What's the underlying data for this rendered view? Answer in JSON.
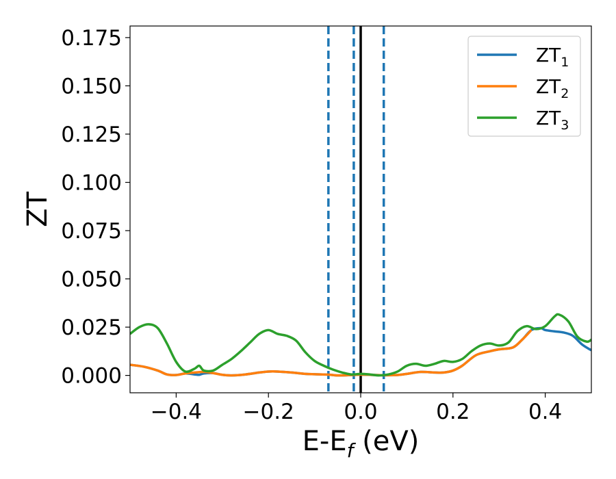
{
  "chart_data": {
    "type": "line",
    "xlabel": "E-E",
    "xlabel_sub": "f",
    "xlabel_unit": " (eV)",
    "ylabel": "ZT",
    "xlim": [
      -0.5,
      0.5
    ],
    "ylim": [
      -0.009,
      0.181
    ],
    "x_ticks": [
      -0.4,
      -0.2,
      0.0,
      0.2,
      0.4
    ],
    "x_tick_labels": [
      "−0.4",
      "−0.2",
      "0.0",
      "0.2",
      "0.4"
    ],
    "y_ticks": [
      0.0,
      0.025,
      0.05,
      0.075,
      0.1,
      0.125,
      0.15,
      0.175
    ],
    "y_tick_labels": [
      "0.000",
      "0.025",
      "0.050",
      "0.075",
      "0.100",
      "0.125",
      "0.150",
      "0.175"
    ],
    "legend_position": "top-right",
    "grid": false,
    "vlines": [
      {
        "x": -0.07,
        "style": "dashed",
        "color": "#1f77b4"
      },
      {
        "x": -0.015,
        "style": "dashed",
        "color": "#1f77b4"
      },
      {
        "x": 0.0,
        "style": "solid",
        "color": "#000000"
      },
      {
        "x": 0.05,
        "style": "dashed",
        "color": "#1f77b4"
      }
    ],
    "series": [
      {
        "name": "ZT",
        "sub": "1",
        "color": "#1f77b4",
        "x": [
          -0.5,
          -0.47,
          -0.44,
          -0.42,
          -0.4,
          -0.38,
          -0.36,
          -0.35,
          -0.34,
          -0.32,
          -0.3,
          -0.28,
          -0.25,
          -0.22,
          -0.2,
          -0.18,
          -0.15,
          -0.12,
          -0.1,
          -0.07,
          -0.05,
          -0.03,
          -0.01,
          0.0,
          0.02,
          0.05,
          0.08,
          0.1,
          0.13,
          0.16,
          0.18,
          0.2,
          0.22,
          0.25,
          0.28,
          0.3,
          0.33,
          0.35,
          0.37,
          0.39,
          0.4,
          0.42,
          0.44,
          0.46,
          0.48,
          0.5
        ],
        "y": [
          0.0055,
          0.0045,
          0.0025,
          0.0005,
          0.0002,
          0.001,
          0.0005,
          0.0003,
          0.001,
          0.0012,
          0.0003,
          0.0,
          0.0005,
          0.0015,
          0.002,
          0.002,
          0.0015,
          0.0008,
          0.0006,
          0.0004,
          0.0,
          0.0001,
          0.0003,
          0.0004,
          0.0003,
          0.0001,
          0.0002,
          0.0008,
          0.0018,
          0.0015,
          0.0015,
          0.0025,
          0.005,
          0.0105,
          0.0125,
          0.0135,
          0.0145,
          0.0185,
          0.0235,
          0.0245,
          0.0235,
          0.0228,
          0.0222,
          0.0205,
          0.016,
          0.013
        ]
      },
      {
        "name": "ZT",
        "sub": "2",
        "color": "#ff7f0e",
        "x": [
          -0.5,
          -0.47,
          -0.44,
          -0.42,
          -0.4,
          -0.38,
          -0.36,
          -0.34,
          -0.32,
          -0.3,
          -0.28,
          -0.25,
          -0.22,
          -0.2,
          -0.18,
          -0.15,
          -0.12,
          -0.1,
          -0.07,
          -0.05,
          -0.03,
          -0.01,
          0.0,
          0.02,
          0.05,
          0.08,
          0.1,
          0.13,
          0.16,
          0.18,
          0.2,
          0.22,
          0.25,
          0.28,
          0.3,
          0.33,
          0.35,
          0.37
        ],
        "y": [
          0.0055,
          0.0045,
          0.0025,
          0.0005,
          0.0002,
          0.001,
          0.0015,
          0.0018,
          0.0012,
          0.0003,
          0.0,
          0.0005,
          0.0015,
          0.002,
          0.002,
          0.0015,
          0.0008,
          0.0006,
          0.0004,
          0.0,
          0.0001,
          0.0003,
          0.0004,
          0.0003,
          0.0001,
          0.0002,
          0.0008,
          0.0018,
          0.0015,
          0.0015,
          0.0025,
          0.005,
          0.0105,
          0.0125,
          0.0135,
          0.0145,
          0.0185,
          0.0235
        ]
      },
      {
        "name": "ZT",
        "sub": "3",
        "color": "#2ca02c",
        "x": [
          -0.5,
          -0.48,
          -0.46,
          -0.44,
          -0.42,
          -0.4,
          -0.38,
          -0.36,
          -0.35,
          -0.34,
          -0.32,
          -0.3,
          -0.28,
          -0.26,
          -0.24,
          -0.22,
          -0.2,
          -0.18,
          -0.16,
          -0.14,
          -0.12,
          -0.1,
          -0.08,
          -0.06,
          -0.04,
          -0.02,
          0.0,
          0.02,
          0.04,
          0.06,
          0.08,
          0.1,
          0.12,
          0.14,
          0.16,
          0.18,
          0.2,
          0.22,
          0.24,
          0.26,
          0.28,
          0.3,
          0.32,
          0.34,
          0.36,
          0.38,
          0.4,
          0.42,
          0.43,
          0.45,
          0.47,
          0.49,
          0.5
        ],
        "y": [
          0.0215,
          0.025,
          0.0265,
          0.0245,
          0.0165,
          0.007,
          0.002,
          0.0035,
          0.005,
          0.0025,
          0.0025,
          0.0055,
          0.0085,
          0.0125,
          0.017,
          0.0215,
          0.0235,
          0.0215,
          0.0205,
          0.018,
          0.012,
          0.0075,
          0.005,
          0.003,
          0.0015,
          0.0005,
          0.0008,
          0.0005,
          0.0,
          0.0005,
          0.002,
          0.005,
          0.006,
          0.005,
          0.006,
          0.0075,
          0.007,
          0.0085,
          0.0125,
          0.0155,
          0.0165,
          0.0155,
          0.017,
          0.023,
          0.0255,
          0.024,
          0.0255,
          0.0305,
          0.0315,
          0.028,
          0.02,
          0.0175,
          0.0185
        ]
      }
    ]
  }
}
